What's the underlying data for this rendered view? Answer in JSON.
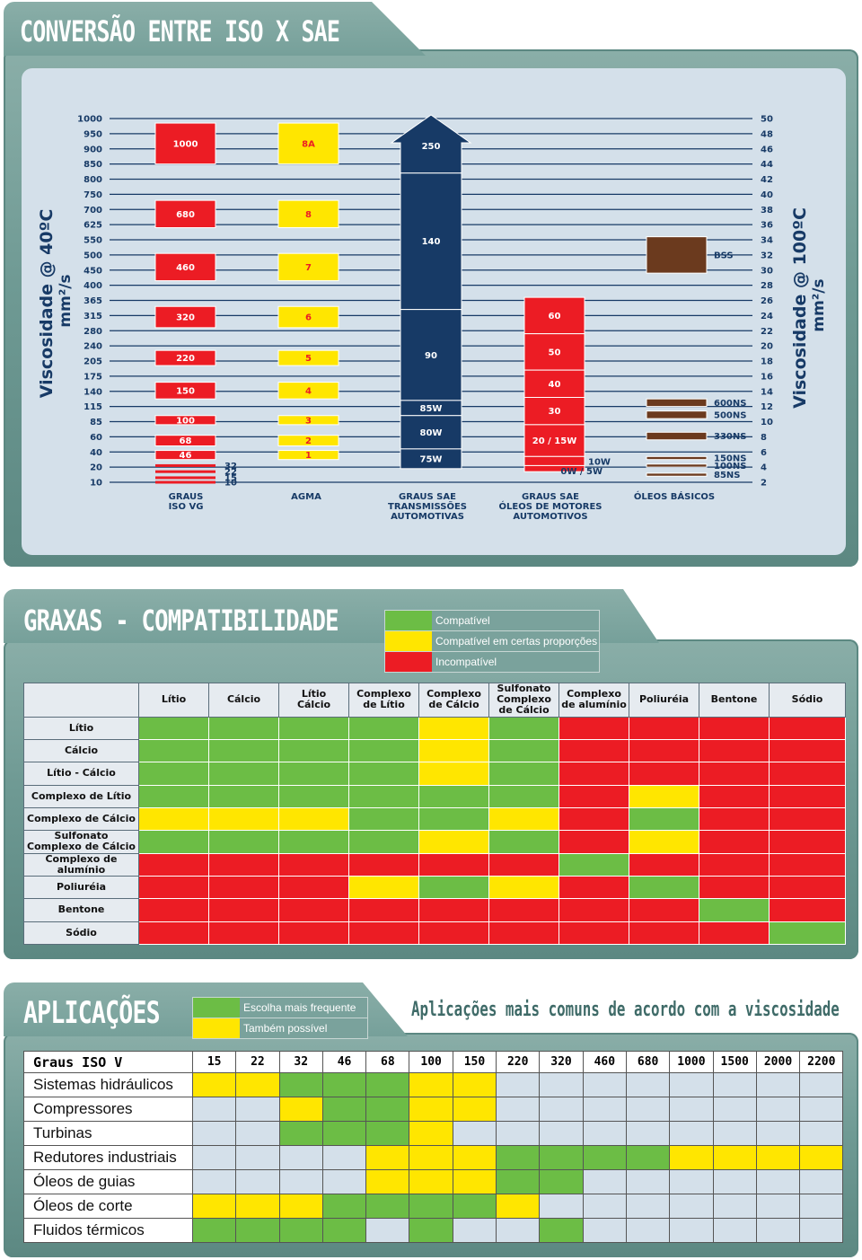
{
  "colors": {
    "red": "#ec1c24",
    "yellow": "#ffe600",
    "green": "#6cbd45",
    "blue": "#173a66",
    "brown": "#6b3a1e",
    "grey": "#d4e0ea"
  },
  "iso_sae": {
    "title": "CONVERSÃO ENTRE ISO X SAE",
    "left_axis_label": "Viscosidade @ 40ºC",
    "left_axis_unit": "mm²/s",
    "right_axis_label": "Viscosidade @ 100ºC",
    "right_axis_unit": "mm²/s",
    "chart_data": {
      "type": "bar",
      "left_ticks": [
        "1000",
        "950",
        "900",
        "850",
        "800",
        "750",
        "700",
        "625",
        "550",
        "500",
        "450",
        "400",
        "365",
        "315",
        "280",
        "240",
        "205",
        "175",
        "140",
        "115",
        "85",
        "60",
        "40",
        "20",
        "10"
      ],
      "right_ticks": [
        "50",
        "48",
        "46",
        "44",
        "42",
        "40",
        "38",
        "36",
        "34",
        "32",
        "30",
        "28",
        "26",
        "24",
        "22",
        "20",
        "18",
        "16",
        "14",
        "12",
        "10",
        "8",
        "6",
        "4",
        "2"
      ],
      "columns": [
        {
          "label": "GRAUS\nISO VG",
          "bars": [
            {
              "label": "1000",
              "from": 0.3,
              "to": 3.0
            },
            {
              "label": "680",
              "from": 5.4,
              "to": 7.2
            },
            {
              "label": "460",
              "from": 8.9,
              "to": 10.7
            },
            {
              "label": "320",
              "from": 12.4,
              "to": 13.8
            },
            {
              "label": "220",
              "from": 15.3,
              "to": 16.3
            },
            {
              "label": "150",
              "from": 17.4,
              "to": 18.5
            },
            {
              "label": "100",
              "from": 19.6,
              "to": 20.2
            },
            {
              "label": "68",
              "from": 20.9,
              "to": 21.6
            },
            {
              "label": "46",
              "from": 21.9,
              "to": 22.5
            }
          ],
          "lines": [
            {
              "label": "32",
              "at": 22.9
            },
            {
              "label": "22",
              "at": 23.3
            },
            {
              "label": "15",
              "at": 23.7
            },
            {
              "label": "10",
              "at": 24.0
            }
          ]
        },
        {
          "label": "AGMA",
          "bars": [
            {
              "label": "8A",
              "from": 0.3,
              "to": 3.0
            },
            {
              "label": "8",
              "from": 5.4,
              "to": 7.2
            },
            {
              "label": "7",
              "from": 8.9,
              "to": 10.7
            },
            {
              "label": "6",
              "from": 12.4,
              "to": 13.8
            },
            {
              "label": "5",
              "from": 15.3,
              "to": 16.3
            },
            {
              "label": "4",
              "from": 17.4,
              "to": 18.5
            },
            {
              "label": "3",
              "from": 19.6,
              "to": 20.2
            },
            {
              "label": "2",
              "from": 20.9,
              "to": 21.6
            },
            {
              "label": "1",
              "from": 21.9,
              "to": 22.5
            }
          ]
        },
        {
          "label": "GRAUS SAE\nTRANSMISSÕES\nAUTOMOTIVAS",
          "bars": [
            {
              "label": "250",
              "from": 0.0,
              "to": 3.6
            },
            {
              "label": "140",
              "from": 3.6,
              "to": 12.6
            },
            {
              "label": "90",
              "from": 12.6,
              "to": 18.6
            },
            {
              "label": "85W",
              "from": 18.6,
              "to": 19.6
            },
            {
              "label": "80W",
              "from": 19.6,
              "to": 21.8
            },
            {
              "label": "75W",
              "from": 21.8,
              "to": 23.1
            }
          ]
        },
        {
          "label": "GRAUS SAE\nÓLEOS DE MOTORES\nAUTOMOTIVOS",
          "bars": [
            {
              "label": "60",
              "from": 11.8,
              "to": 14.2
            },
            {
              "label": "50",
              "from": 14.2,
              "to": 16.6
            },
            {
              "label": "40",
              "from": 16.6,
              "to": 18.4
            },
            {
              "label": "30",
              "from": 18.4,
              "to": 20.2
            },
            {
              "label": "20 / 15W",
              "from": 20.2,
              "to": 22.3
            },
            {
              "label": "10W",
              "from": 22.3,
              "to": 22.9
            },
            {
              "label": "0W / 5W",
              "from": 22.9,
              "to": 23.3
            }
          ]
        },
        {
          "label": "ÓLEOS BÁSICOS",
          "bars": [
            {
              "label": "BSS",
              "from": 7.8,
              "to": 10.2
            },
            {
              "label": "600NS",
              "from": 18.5,
              "to": 19.0
            },
            {
              "label": "500NS",
              "from": 19.3,
              "to": 19.8
            },
            {
              "label": "330NS",
              "from": 20.7,
              "to": 21.2
            },
            {
              "label": "150NS",
              "from": 22.3,
              "to": 22.5
            },
            {
              "label": "100NS",
              "from": 22.8,
              "to": 23.0
            },
            {
              "label": "85NS",
              "from": 23.4,
              "to": 23.6
            }
          ]
        }
      ]
    }
  },
  "graxas": {
    "title": "GRAXAS - COMPATIBILIDADE",
    "legend": [
      {
        "color": "green",
        "label": "Compatível"
      },
      {
        "color": "yellow",
        "label": "Compatível em certas proporções"
      },
      {
        "color": "red",
        "label": "Incompatível"
      }
    ],
    "chart_data": {
      "type": "table",
      "columns": [
        "Lítio",
        "Cálcio",
        "Lítio\nCálcio",
        "Complexo\nde Lítio",
        "Complexo\nde Cálcio",
        "Sulfonato\nComplexo\nde Cálcio",
        "Complexo\nde alumínio",
        "Poliuréia",
        "Bentone",
        "Sódio"
      ],
      "rows": [
        {
          "label": "Lítio",
          "cells": [
            "G",
            "G",
            "G",
            "G",
            "Y",
            "G",
            "R",
            "R",
            "R",
            "R"
          ]
        },
        {
          "label": "Cálcio",
          "cells": [
            "G",
            "G",
            "G",
            "G",
            "Y",
            "G",
            "R",
            "R",
            "R",
            "R"
          ]
        },
        {
          "label": "Lítio - Cálcio",
          "cells": [
            "G",
            "G",
            "G",
            "G",
            "Y",
            "G",
            "R",
            "R",
            "R",
            "R"
          ]
        },
        {
          "label": "Complexo de Lítio",
          "cells": [
            "G",
            "G",
            "G",
            "G",
            "G",
            "G",
            "R",
            "Y",
            "R",
            "R"
          ]
        },
        {
          "label": "Complexo de Cálcio",
          "cells": [
            "Y",
            "Y",
            "Y",
            "G",
            "G",
            "Y",
            "R",
            "G",
            "R",
            "R"
          ]
        },
        {
          "label": "Sulfonato\nComplexo de Cálcio",
          "cells": [
            "G",
            "G",
            "G",
            "G",
            "Y",
            "G",
            "R",
            "Y",
            "R",
            "R"
          ]
        },
        {
          "label": "Complexo de alumínio",
          "cells": [
            "R",
            "R",
            "R",
            "R",
            "R",
            "R",
            "G",
            "R",
            "R",
            "R"
          ]
        },
        {
          "label": "Poliuréia",
          "cells": [
            "R",
            "R",
            "R",
            "Y",
            "G",
            "Y",
            "R",
            "G",
            "R",
            "R"
          ]
        },
        {
          "label": "Bentone",
          "cells": [
            "R",
            "R",
            "R",
            "R",
            "R",
            "R",
            "R",
            "R",
            "G",
            "R"
          ]
        },
        {
          "label": "Sódio",
          "cells": [
            "R",
            "R",
            "R",
            "R",
            "R",
            "R",
            "R",
            "R",
            "R",
            "G"
          ]
        }
      ]
    }
  },
  "aplicacoes": {
    "title": "APLICAÇÕES",
    "subtitle": "Aplicações mais comuns de acordo com a viscosidade",
    "legend": [
      {
        "color": "green",
        "label": "Escolha mais frequente"
      },
      {
        "color": "yellow",
        "label": "Também possível"
      }
    ],
    "chart_data": {
      "type": "table",
      "header": "Graus ISO V",
      "columns": [
        "15",
        "22",
        "32",
        "46",
        "68",
        "100",
        "150",
        "220",
        "320",
        "460",
        "680",
        "1000",
        "1500",
        "2000",
        "2200"
      ],
      "rows": [
        {
          "label": "Sistemas hidráulicos",
          "cells": [
            "Y",
            "Y",
            "G",
            "G",
            "G",
            "Y",
            "Y",
            "-",
            "-",
            "-",
            "-",
            "-",
            "-",
            "-",
            "-"
          ]
        },
        {
          "label": "Compressores",
          "cells": [
            "-",
            "-",
            "Y",
            "G",
            "G",
            "Y",
            "Y",
            "-",
            "-",
            "-",
            "-",
            "-",
            "-",
            "-",
            "-"
          ]
        },
        {
          "label": "Turbinas",
          "cells": [
            "-",
            "-",
            "G",
            "G",
            "G",
            "Y",
            "-",
            "-",
            "-",
            "-",
            "-",
            "-",
            "-",
            "-",
            "-"
          ]
        },
        {
          "label": "Redutores industriais",
          "cells": [
            "-",
            "-",
            "-",
            "-",
            "Y",
            "Y",
            "Y",
            "G",
            "G",
            "G",
            "G",
            "Y",
            "Y",
            "Y",
            "Y"
          ]
        },
        {
          "label": "Óleos de guias",
          "cells": [
            "-",
            "-",
            "-",
            "-",
            "Y",
            "Y",
            "Y",
            "G",
            "G",
            "-",
            "-",
            "-",
            "-",
            "-",
            "-"
          ]
        },
        {
          "label": "Óleos de corte",
          "cells": [
            "Y",
            "Y",
            "Y",
            "G",
            "G",
            "G",
            "G",
            "Y",
            "-",
            "-",
            "-",
            "-",
            "-",
            "-",
            "-"
          ]
        },
        {
          "label": "Fluidos térmicos",
          "cells": [
            "G",
            "G",
            "G",
            "G",
            "-",
            "G",
            "-",
            "-",
            "G",
            "-",
            "-",
            "-",
            "-",
            "-",
            "-"
          ]
        }
      ]
    }
  }
}
